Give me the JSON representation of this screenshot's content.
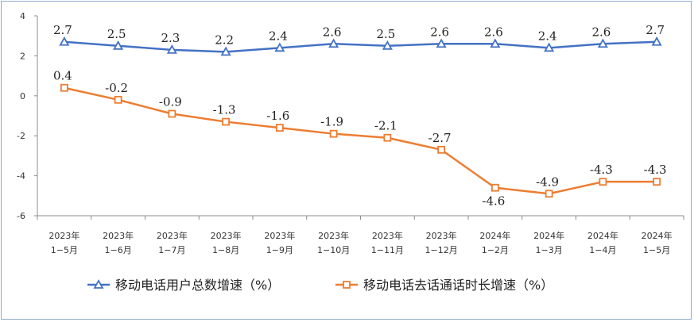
{
  "chart_data": {
    "type": "line",
    "title": "",
    "xlabel": "",
    "ylabel": "",
    "ylim": [
      -6,
      4
    ],
    "yticks": [
      4,
      2,
      0,
      -2,
      -4,
      -6
    ],
    "grid": false,
    "legend_position": "bottom-center",
    "categories": [
      {
        "year": "2023年",
        "period": "1−5月"
      },
      {
        "year": "2023年",
        "period": "1−6月"
      },
      {
        "year": "2023年",
        "period": "1−7月"
      },
      {
        "year": "2023年",
        "period": "1−8月"
      },
      {
        "year": "2023年",
        "period": "1−9月"
      },
      {
        "year": "2023年",
        "period": "1−10月"
      },
      {
        "year": "2023年",
        "period": "1−11月"
      },
      {
        "year": "2023年",
        "period": "1−12月"
      },
      {
        "year": "2024年",
        "period": "1−2月"
      },
      {
        "year": "2024年",
        "period": "1−3月"
      },
      {
        "year": "2024年",
        "period": "1−4月"
      },
      {
        "year": "2024年",
        "period": "1−5月"
      }
    ],
    "series": [
      {
        "name": "移动电话用户总数增速（%）",
        "color": "#4472c4",
        "marker": "triangle",
        "values": [
          2.7,
          2.5,
          2.3,
          2.2,
          2.4,
          2.6,
          2.5,
          2.6,
          2.6,
          2.4,
          2.6,
          2.7
        ],
        "labels": [
          "2.7",
          "2.5",
          "2.3",
          "2.2",
          "2.4",
          "2.6",
          "2.5",
          "2.6",
          "2.6",
          "2.4",
          "2.6",
          "2.7"
        ]
      },
      {
        "name": "移动电话去话通话时长增速（%）",
        "color": "#ed7d31",
        "marker": "square",
        "values": [
          0.4,
          -0.2,
          -0.9,
          -1.3,
          -1.6,
          -1.9,
          -2.1,
          -2.7,
          -4.6,
          -4.9,
          -4.3,
          -4.3
        ],
        "labels": [
          "0.4",
          "-0.2",
          "-0.9",
          "-1.3",
          "-1.6",
          "-1.9",
          "-2.1",
          "-2.7",
          "-4.6",
          "-4.9",
          "-4.3",
          "-4.3"
        ],
        "label_position": [
          "above",
          "above",
          "above",
          "above",
          "above",
          "above",
          "above",
          "above",
          "below",
          "above",
          "above",
          "above"
        ]
      }
    ]
  }
}
